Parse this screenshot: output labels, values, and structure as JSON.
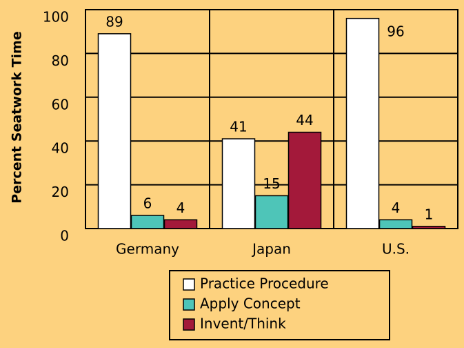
{
  "chart_data": {
    "type": "bar",
    "y_label": "Percent Seatwork Time",
    "categories": [
      "Germany",
      "Japan",
      "U.S."
    ],
    "series": [
      {
        "name": "Practice Procedure",
        "color": "#ffffff",
        "values": [
          89,
          41,
          96
        ]
      },
      {
        "name": "Apply Concept",
        "color": "#4ec5b8",
        "values": [
          6,
          15,
          4
        ]
      },
      {
        "name": "Invent/Think",
        "color": "#a3193a",
        "values": [
          4,
          44,
          1
        ]
      }
    ],
    "ylim": [
      0,
      100
    ],
    "yticks": [
      0,
      20,
      40,
      60,
      80,
      100
    ],
    "grid": true
  }
}
